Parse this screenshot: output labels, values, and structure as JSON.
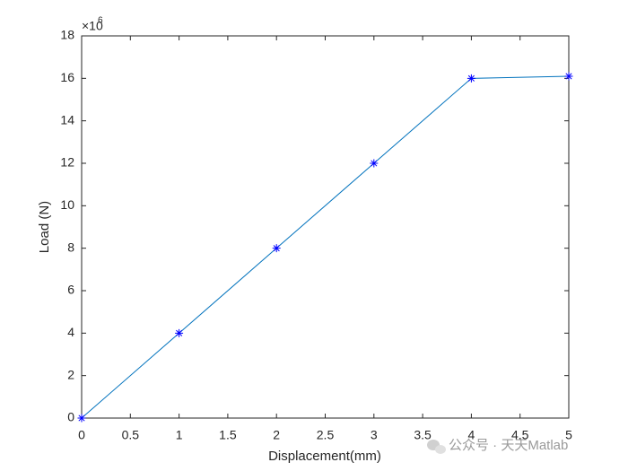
{
  "chart_data": {
    "type": "line",
    "x": [
      0,
      1,
      2,
      3,
      4,
      5
    ],
    "series": [
      {
        "color": "#0072bd",
        "marker_color": "#0000ff",
        "values": [
          0,
          4,
          8,
          12,
          16,
          16.1
        ]
      }
    ],
    "xlim": [
      0,
      5
    ],
    "xticks": [
      0,
      0.5,
      1,
      1.5,
      2,
      2.5,
      3,
      3.5,
      4,
      4.5,
      5
    ],
    "ylim": [
      0,
      18
    ],
    "yticks": [
      0,
      2,
      4,
      6,
      8,
      10,
      12,
      14,
      16,
      18
    ],
    "y_multiplier": {
      "base": "×10",
      "power": "6"
    },
    "x_label": "Displacement(mm)",
    "y_label": "Load (N)",
    "watermark": "公众号 · 天天Matlab"
  }
}
